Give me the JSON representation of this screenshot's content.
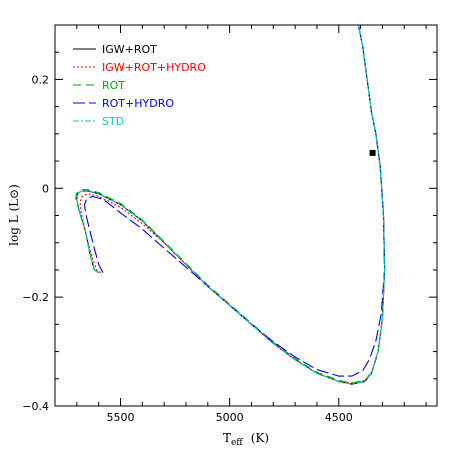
{
  "chart_data": {
    "type": "line",
    "title": "",
    "xlabel_main": "T",
    "xlabel_sub": "eff",
    "xlabel_unit": "(K)",
    "ylabel": "log L (L⊙)",
    "xlim": [
      5800,
      4050
    ],
    "ylim": [
      -0.4,
      0.3
    ],
    "x_ticks": [
      5500,
      5000,
      4500
    ],
    "x_tick_labels": [
      "5500",
      "5000",
      "4500"
    ],
    "y_ticks": [
      -0.4,
      -0.2,
      0,
      0.2
    ],
    "y_tick_labels": [
      "−0.4",
      "−0.2",
      "0",
      "0.2"
    ],
    "legend_position": "top-left",
    "colors": {
      "IGW+ROT": "#000000",
      "IGW+ROT+HYDRO": "#ff0000",
      "ROT": "#00aa00",
      "ROT+HYDRO": "#0000dd",
      "STD": "#00cccc"
    },
    "series": [
      {
        "name": "IGW+ROT",
        "color": "#000000",
        "dash": "",
        "x": [
          5600,
          5620,
          5640,
          5660,
          5690,
          5700,
          5698,
          5680,
          5650,
          5600,
          5500,
          5400,
          5300,
          5200,
          5100,
          5000,
          4900,
          4800,
          4700,
          4600,
          4500,
          4440,
          4380,
          4350,
          4320,
          4300,
          4290,
          4295,
          4310,
          4330,
          4350,
          4370,
          4390,
          4410
        ],
        "y": [
          -0.155,
          -0.15,
          -0.12,
          -0.08,
          -0.04,
          -0.02,
          -0.01,
          -0.005,
          -0.005,
          -0.01,
          -0.03,
          -0.06,
          -0.1,
          -0.14,
          -0.18,
          -0.215,
          -0.25,
          -0.285,
          -0.315,
          -0.34,
          -0.355,
          -0.36,
          -0.355,
          -0.34,
          -0.3,
          -0.24,
          -0.15,
          -0.05,
          0.04,
          0.1,
          0.14,
          0.2,
          0.26,
          0.3
        ]
      },
      {
        "name": "IGW+ROT+HYDRO",
        "color": "#ff0000",
        "dash": "2,2",
        "x": [
          5590,
          5610,
          5635,
          5660,
          5680,
          5685,
          5675,
          5650,
          5600,
          5500,
          5400,
          5300,
          5200,
          5100,
          5000,
          4900,
          4800,
          4700,
          4600,
          4500,
          4440,
          4380,
          4350,
          4320,
          4300,
          4290,
          4295,
          4310,
          4330,
          4350,
          4370,
          4390,
          4410
        ],
        "y": [
          -0.155,
          -0.15,
          -0.12,
          -0.08,
          -0.045,
          -0.025,
          -0.015,
          -0.01,
          -0.015,
          -0.035,
          -0.065,
          -0.1,
          -0.14,
          -0.18,
          -0.215,
          -0.25,
          -0.285,
          -0.315,
          -0.34,
          -0.355,
          -0.358,
          -0.353,
          -0.338,
          -0.3,
          -0.24,
          -0.15,
          -0.05,
          0.04,
          0.1,
          0.14,
          0.2,
          0.26,
          0.3
        ]
      },
      {
        "name": "ROT",
        "color": "#00aa00",
        "dash": "8,5",
        "x": [
          5600,
          5620,
          5640,
          5660,
          5690,
          5705,
          5702,
          5685,
          5655,
          5600,
          5500,
          5400,
          5300,
          5200,
          5100,
          5000,
          4900,
          4800,
          4700,
          4600,
          4500,
          4440,
          4380,
          4350,
          4320,
          4300,
          4290,
          4295,
          4310,
          4330,
          4350,
          4370,
          4390,
          4410
        ],
        "y": [
          -0.155,
          -0.15,
          -0.12,
          -0.08,
          -0.04,
          -0.02,
          -0.01,
          -0.003,
          -0.002,
          -0.008,
          -0.028,
          -0.058,
          -0.098,
          -0.138,
          -0.178,
          -0.213,
          -0.248,
          -0.283,
          -0.313,
          -0.338,
          -0.353,
          -0.358,
          -0.353,
          -0.338,
          -0.3,
          -0.24,
          -0.15,
          -0.05,
          0.04,
          0.1,
          0.14,
          0.2,
          0.26,
          0.3
        ]
      },
      {
        "name": "ROT+HYDRO",
        "color": "#0000dd",
        "dash": "12,4",
        "x": [
          5580,
          5600,
          5620,
          5645,
          5660,
          5665,
          5655,
          5630,
          5580,
          5500,
          5400,
          5300,
          5200,
          5100,
          5000,
          4900,
          4800,
          4700,
          4600,
          4500,
          4440,
          4390,
          4360,
          4330,
          4305,
          4290,
          4295,
          4310,
          4330,
          4350,
          4370,
          4390,
          4410
        ],
        "y": [
          -0.155,
          -0.14,
          -0.11,
          -0.07,
          -0.045,
          -0.03,
          -0.02,
          -0.015,
          -0.02,
          -0.045,
          -0.075,
          -0.11,
          -0.145,
          -0.18,
          -0.215,
          -0.25,
          -0.282,
          -0.31,
          -0.333,
          -0.345,
          -0.345,
          -0.335,
          -0.315,
          -0.28,
          -0.23,
          -0.15,
          -0.05,
          0.04,
          0.1,
          0.14,
          0.2,
          0.26,
          0.3
        ]
      },
      {
        "name": "STD",
        "color": "#00cccc",
        "dash": "6,2,2,2",
        "x": [
          5600,
          5620,
          5640,
          5660,
          5690,
          5700,
          5698,
          5680,
          5650,
          5600,
          5500,
          5400,
          5300,
          5200,
          5100,
          5000,
          4900,
          4800,
          4700,
          4600,
          4500,
          4440,
          4380,
          4350,
          4320,
          4300,
          4290,
          4295,
          4310,
          4330,
          4350,
          4370,
          4390,
          4410
        ],
        "y": [
          -0.155,
          -0.15,
          -0.12,
          -0.08,
          -0.04,
          -0.02,
          -0.01,
          -0.005,
          -0.004,
          -0.01,
          -0.03,
          -0.06,
          -0.1,
          -0.14,
          -0.18,
          -0.215,
          -0.25,
          -0.285,
          -0.315,
          -0.34,
          -0.355,
          -0.36,
          -0.355,
          -0.34,
          -0.3,
          -0.24,
          -0.15,
          -0.05,
          0.04,
          0.1,
          0.14,
          0.2,
          0.26,
          0.3
        ]
      }
    ],
    "marker": {
      "x": 4345,
      "y": 0.065,
      "shape": "square",
      "color": "#000000"
    }
  }
}
